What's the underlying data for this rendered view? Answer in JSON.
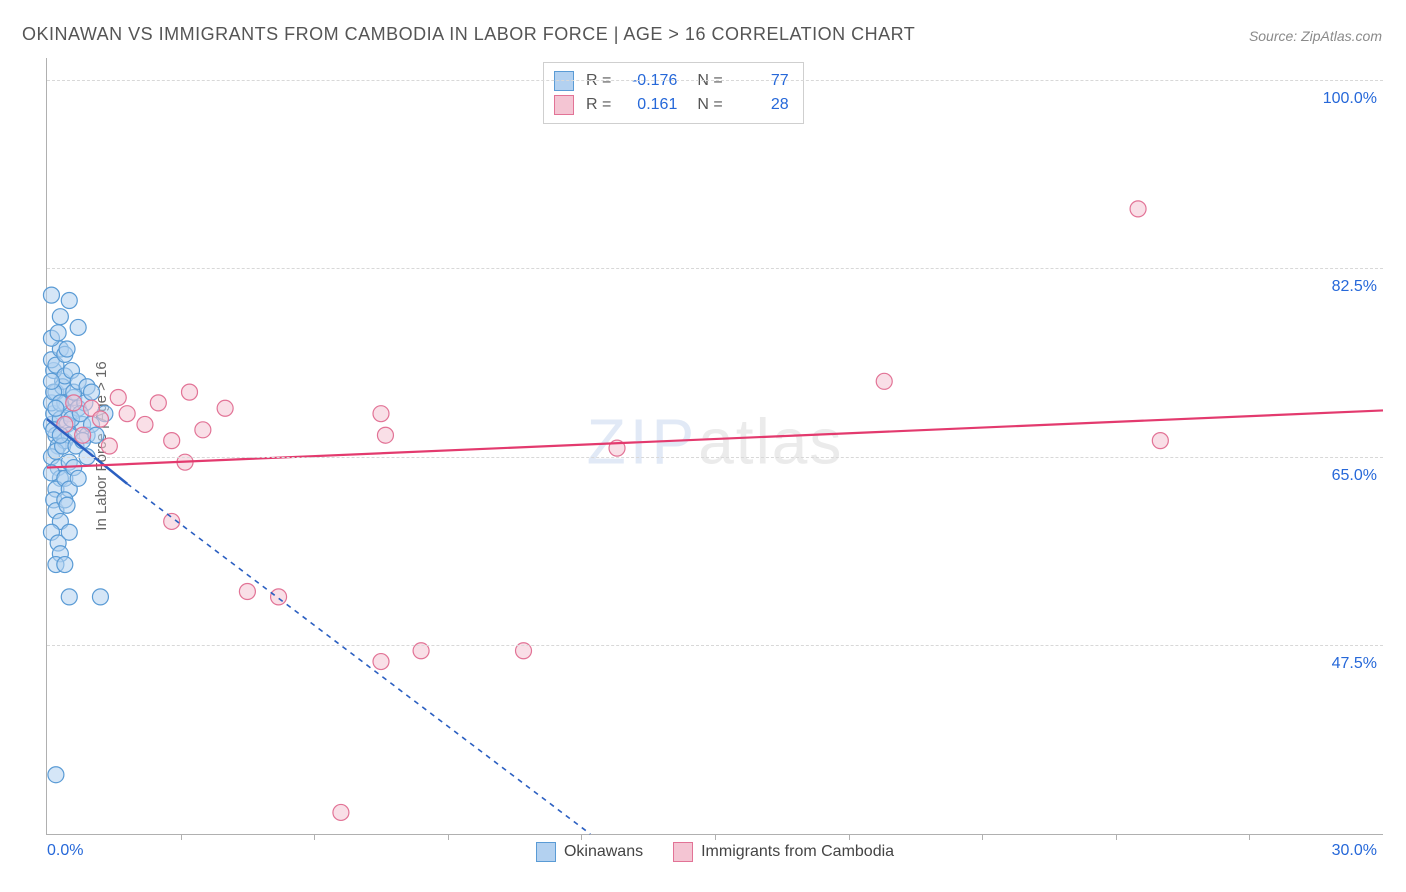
{
  "title": "OKINAWAN VS IMMIGRANTS FROM CAMBODIA IN LABOR FORCE | AGE > 16 CORRELATION CHART",
  "source": "Source: ZipAtlas.com",
  "watermark_zip": "ZIP",
  "watermark_atlas": "atlas",
  "chart": {
    "type": "scatter",
    "y_axis_title": "In Labor Force | Age > 16",
    "xlim": [
      0,
      30
    ],
    "ylim": [
      30,
      102
    ],
    "x_min_label": "0.0%",
    "x_max_label": "30.0%",
    "gridlines": [
      {
        "y": 47.5,
        "label": "47.5%"
      },
      {
        "y": 65.0,
        "label": "65.0%"
      },
      {
        "y": 82.5,
        "label": "82.5%"
      },
      {
        "y": 100.0,
        "label": "100.0%"
      }
    ],
    "x_ticks": [
      3,
      6,
      9,
      12,
      15,
      18,
      21,
      24,
      27
    ],
    "series": {
      "okinawans": {
        "label": "Okinawans",
        "fill": "#b3d1f0",
        "stroke": "#5a9bd5",
        "fill_opacity": 0.55,
        "r_value": "-0.176",
        "n_value": "77",
        "line_color": "#2b5fc1",
        "line_dash": "5,5",
        "solid_segment": {
          "x1": 0.0,
          "y1": 68.5,
          "x2": 1.8,
          "y2": 62.5
        },
        "dashed_segment": {
          "x1": 1.8,
          "y1": 62.5,
          "x2": 12.2,
          "y2": 30.0
        },
        "points": [
          [
            0.1,
            68
          ],
          [
            0.2,
            67
          ],
          [
            0.15,
            69
          ],
          [
            0.25,
            66
          ],
          [
            0.1,
            70
          ],
          [
            0.3,
            68.5
          ],
          [
            0.2,
            71
          ],
          [
            0.35,
            72
          ],
          [
            0.15,
            73
          ],
          [
            0.4,
            70
          ],
          [
            0.1,
            65
          ],
          [
            0.25,
            64
          ],
          [
            0.3,
            63
          ],
          [
            0.2,
            62
          ],
          [
            0.4,
            66.5
          ],
          [
            0.15,
            67.5
          ],
          [
            0.5,
            69
          ],
          [
            0.35,
            71.5
          ],
          [
            0.1,
            74
          ],
          [
            0.45,
            68
          ],
          [
            0.2,
            73.5
          ],
          [
            0.6,
            70.5
          ],
          [
            0.3,
            75
          ],
          [
            0.4,
            72.5
          ],
          [
            0.5,
            67
          ],
          [
            0.1,
            76
          ],
          [
            0.7,
            69.5
          ],
          [
            0.15,
            71
          ],
          [
            0.55,
            73
          ],
          [
            0.2,
            65.5
          ],
          [
            0.8,
            68
          ],
          [
            0.3,
            70
          ],
          [
            0.9,
            67
          ],
          [
            0.4,
            74.5
          ],
          [
            0.25,
            76.5
          ],
          [
            0.6,
            71
          ],
          [
            0.1,
            63.5
          ],
          [
            0.5,
            64.5
          ],
          [
            0.35,
            66
          ],
          [
            0.7,
            72
          ],
          [
            0.2,
            69.5
          ],
          [
            0.45,
            75
          ],
          [
            0.15,
            61
          ],
          [
            0.85,
            70
          ],
          [
            0.3,
            67
          ],
          [
            0.55,
            68.5
          ],
          [
            0.4,
            63
          ],
          [
            0.65,
            66
          ],
          [
            0.1,
            72
          ],
          [
            0.75,
            69
          ],
          [
            0.2,
            60
          ],
          [
            0.5,
            62
          ],
          [
            0.3,
            59
          ],
          [
            0.9,
            71.5
          ],
          [
            0.4,
            61
          ],
          [
            0.6,
            64
          ],
          [
            0.1,
            58
          ],
          [
            0.8,
            66.5
          ],
          [
            0.25,
            57
          ],
          [
            0.45,
            60.5
          ],
          [
            1.0,
            68
          ],
          [
            0.3,
            56
          ],
          [
            0.7,
            63
          ],
          [
            0.2,
            55
          ],
          [
            1.1,
            67
          ],
          [
            0.5,
            58
          ],
          [
            0.9,
            65
          ],
          [
            1.3,
            69
          ],
          [
            0.1,
            80
          ],
          [
            0.3,
            78
          ],
          [
            0.5,
            79.5
          ],
          [
            0.7,
            77
          ],
          [
            1.0,
            71
          ],
          [
            0.4,
            55
          ],
          [
            0.5,
            52
          ],
          [
            1.2,
            52
          ],
          [
            0.2,
            35.5
          ]
        ]
      },
      "cambodia": {
        "label": "Immigrants from Cambodia",
        "fill": "#f4c5d3",
        "stroke": "#e27396",
        "fill_opacity": 0.55,
        "r_value": "0.161",
        "n_value": "28",
        "line_color": "#e33a6e",
        "line_dash": "none",
        "regression": {
          "x1": 0.0,
          "y1": 64.0,
          "x2": 30.0,
          "y2": 69.3
        },
        "points": [
          [
            0.4,
            68
          ],
          [
            0.6,
            70
          ],
          [
            0.8,
            67
          ],
          [
            1.0,
            69.5
          ],
          [
            1.2,
            68.5
          ],
          [
            1.4,
            66
          ],
          [
            1.6,
            70.5
          ],
          [
            1.8,
            69
          ],
          [
            2.2,
            68
          ],
          [
            2.5,
            70
          ],
          [
            2.8,
            66.5
          ],
          [
            3.2,
            71
          ],
          [
            3.5,
            67.5
          ],
          [
            3.1,
            64.5
          ],
          [
            4.0,
            69.5
          ],
          [
            2.8,
            59
          ],
          [
            7.5,
            69
          ],
          [
            7.6,
            67
          ],
          [
            12.8,
            65.8
          ],
          [
            18.8,
            72
          ],
          [
            24.5,
            88
          ],
          [
            25.0,
            66.5
          ],
          [
            4.5,
            52.5
          ],
          [
            5.2,
            52.0
          ],
          [
            7.5,
            46.0
          ],
          [
            8.4,
            47.0
          ],
          [
            10.7,
            47.0
          ],
          [
            6.6,
            32.0
          ]
        ]
      }
    },
    "stats_labels": {
      "r": "R =",
      "n": "N ="
    },
    "colors": {
      "grid": "#d8d8d8",
      "axis": "#b0b0b0",
      "label_blue": "#2668d9",
      "text": "#555555"
    },
    "point_radius": 8
  }
}
